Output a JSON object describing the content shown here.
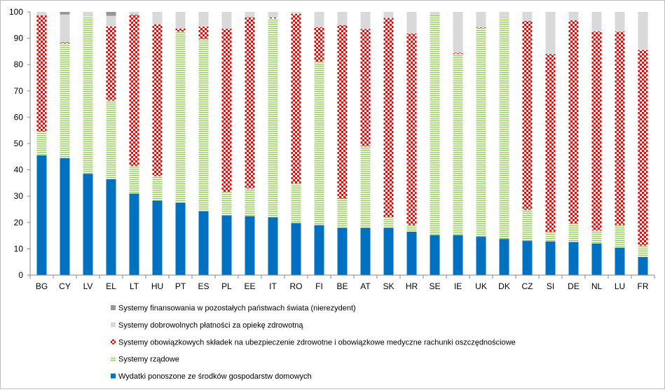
{
  "chart_data": {
    "type": "bar",
    "stacked": true,
    "ylim": [
      0,
      100
    ],
    "yticks": [
      0,
      10,
      20,
      30,
      40,
      50,
      60,
      70,
      80,
      90,
      100
    ],
    "categories": [
      "BG",
      "CY",
      "LV",
      "EL",
      "LT",
      "HU",
      "PT",
      "ES",
      "PL",
      "EE",
      "IT",
      "RO",
      "FI",
      "BE",
      "AT",
      "SK",
      "HR",
      "SE",
      "IE",
      "UK",
      "DK",
      "CZ",
      "SI",
      "DE",
      "NL",
      "LU",
      "FR"
    ],
    "series": [
      {
        "name": "Wydatki ponoszone ze środków gospodarstw domowych",
        "key": "household",
        "color": "#0070c0",
        "pattern": "solid",
        "values": [
          45.5,
          44.5,
          38.5,
          36.5,
          31,
          28.3,
          27.5,
          24.2,
          22.6,
          22.4,
          22,
          19.8,
          19,
          18,
          18,
          18,
          16.5,
          15.2,
          15.2,
          14.6,
          13.7,
          13,
          12.8,
          12.6,
          12,
          10.4,
          6.9
        ]
      },
      {
        "name": "Systemy rządowe",
        "key": "government",
        "color": "#92d050",
        "pattern": "hstripes",
        "values": [
          9,
          43.5,
          60,
          29.8,
          10.5,
          9.3,
          65,
          65.4,
          9,
          10.6,
          75.5,
          15,
          62,
          11,
          31,
          4,
          2.5,
          83.5,
          68.9,
          79.2,
          84,
          11.8,
          3.7,
          7,
          5,
          8.6,
          4.3
        ]
      },
      {
        "name": "Systemy obowiązkowych składek na ubezpieczenie zdrowotne i obowiązkowe medyczne rachunki oszczędnościowe",
        "key": "compulsory",
        "color": "#ff0000",
        "pattern": "checker",
        "values": [
          44.2,
          0.5,
          0,
          28.2,
          57.5,
          57.7,
          1.2,
          4.8,
          62,
          65,
          0.4,
          64.5,
          13.2,
          66,
          44.5,
          75.7,
          72.8,
          0,
          0.4,
          0.3,
          0,
          71.8,
          67.5,
          77.2,
          75.6,
          73.5,
          74.3
        ]
      },
      {
        "name": "Systemy dobrowolnych płatności za opiekę zdrowotną",
        "key": "voluntary",
        "color": "#d9d9d9",
        "pattern": "solid",
        "values": [
          1.3,
          10.5,
          1.5,
          4,
          1,
          4.7,
          6.3,
          5.6,
          6.4,
          2,
          2.1,
          0.7,
          5.8,
          5,
          6.5,
          2.3,
          8.2,
          1.3,
          15.5,
          5.9,
          2.3,
          3.4,
          16,
          3.2,
          7.4,
          7.5,
          14.5
        ]
      },
      {
        "name": "Systemy finansowania w pozostałych państwach świata (nierezydent)",
        "key": "nonresident",
        "color": "#969696",
        "pattern": "solid",
        "values": [
          0,
          1,
          0,
          1.5,
          0,
          0,
          0,
          0,
          0,
          0,
          0,
          0,
          0,
          0,
          0,
          0,
          0,
          0,
          0,
          0,
          0,
          0,
          0,
          0,
          0,
          0,
          0
        ]
      }
    ],
    "legend_order": [
      "nonresident",
      "voluntary",
      "compulsory",
      "government",
      "household"
    ],
    "legend_position": "bottom",
    "title": "",
    "xlabel": "",
    "ylabel": ""
  }
}
